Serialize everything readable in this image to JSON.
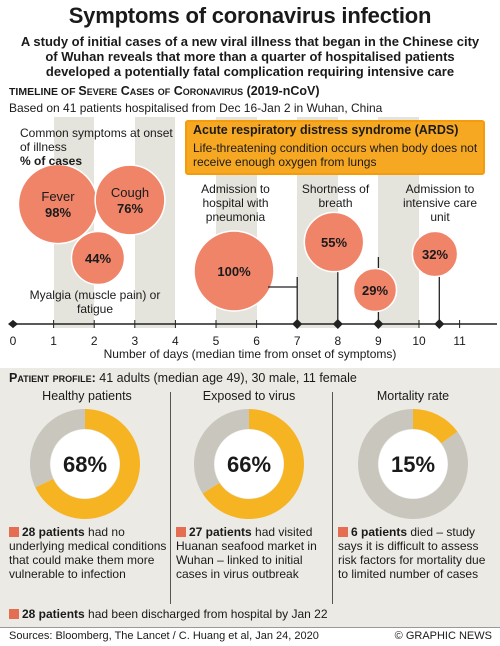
{
  "title": "Symptoms of coronavirus infection",
  "subtitle": "A study of initial cases of a new viral illness that began in the Chinese city of Wuhan reveals that more than a quarter of hospitalised patients developed a potentially fatal complication requiring intensive care",
  "timeline": {
    "heading_prefix": "Timeline of ",
    "heading_caps": "Severe Cases of Coronavirus",
    "heading_suffix": " (2019-nCoV)",
    "based_on": "Based on 41 patients hospitalised from Dec 16-Jan 2 in Wuhan, China",
    "common_symptoms_label": "Common symptoms at onset of illness",
    "pct_of_cases": "% of cases",
    "myalgia_label": "Myalgia (muscle pain) or fatigue",
    "admission_label": "Admission to hospital with pneumonia",
    "shortness_label": "Shortness of breath",
    "icu_label": "Admission to intensive care unit",
    "ards_title": "Acute respiratory distress syndrome (ARDS)",
    "ards_text": "Life-threatening condition occurs when body does not receive enough oxygen from lungs",
    "xlabel": "Number of days (median time from onset of symptoms)"
  },
  "chart_data": [
    {
      "type": "scatter",
      "title": "Timeline of Severe Cases of Coronavirus (2019-nCoV)",
      "xlabel": "Number of days (median time from onset of symptoms)",
      "xlim": [
        0,
        11
      ],
      "xticks": [
        0,
        1,
        2,
        3,
        4,
        5,
        6,
        7,
        8,
        9,
        10,
        11
      ],
      "milestone_days": [
        7,
        8,
        9,
        10.5
      ],
      "points": [
        {
          "label": "Fever",
          "value": 98,
          "pct": "98%",
          "day": 1.5
        },
        {
          "label": "Cough",
          "value": 76,
          "pct": "76%",
          "day": 2.7
        },
        {
          "label": "Myalgia (muscle pain) or fatigue",
          "value": 44,
          "pct": "44%",
          "day": 2.1
        },
        {
          "label": "Admission to hospital with pneumonia",
          "value": 100,
          "pct": "100%",
          "day": 5.5
        },
        {
          "label": "Shortness of breath",
          "value": 55,
          "pct": "55%",
          "day": 8
        },
        {
          "label": "Acute respiratory distress syndrome (ARDS)",
          "value": 29,
          "pct": "29%",
          "day": 9
        },
        {
          "label": "Admission to intensive care unit",
          "value": 32,
          "pct": "32%",
          "day": 10.5
        }
      ],
      "colors": {
        "bubble": "#f08469",
        "bubble_stroke": "#c95a43",
        "band": "#e4e3dc",
        "ards": "#f7a823"
      }
    },
    {
      "type": "pie",
      "title": "Patient Profile",
      "series": [
        {
          "name": "Healthy patients",
          "values": [
            68,
            32
          ]
        },
        {
          "name": "Exposed to virus",
          "values": [
            66,
            34
          ]
        },
        {
          "name": "Mortality rate",
          "values": [
            15,
            85
          ]
        }
      ],
      "colors": {
        "highlight": "#f7b422",
        "rest": "#c8c6bd"
      }
    }
  ],
  "profile": {
    "heading_bold": "Patient profile:",
    "heading_rest": " 41 adults (median age 49), 30 male, 11 female",
    "columns": [
      {
        "head": "Healthy patients",
        "pct": "68%",
        "bold": "28 patients",
        "text": " had no underlying medical conditions that could make them more vulnerable to infection"
      },
      {
        "head": "Exposed to virus",
        "pct": "66%",
        "bold": "27 patients",
        "text": " had visited Huanan seafood market in Wuhan – linked to initial cases in virus outbreak"
      },
      {
        "head": "Mortality rate",
        "pct": "15%",
        "bold": "6 patients",
        "text": " died – study says it is difficult to assess risk factors for mortality due to limited number of cases"
      }
    ],
    "discharged_bold": "28 patients",
    "discharged_text": " had been discharged from hospital by Jan 22"
  },
  "footer": {
    "sources": "Sources: Bloomberg, The Lancet / C. Huang et al, Jan 24, 2020",
    "brand": "© GRAPHIC NEWS"
  }
}
